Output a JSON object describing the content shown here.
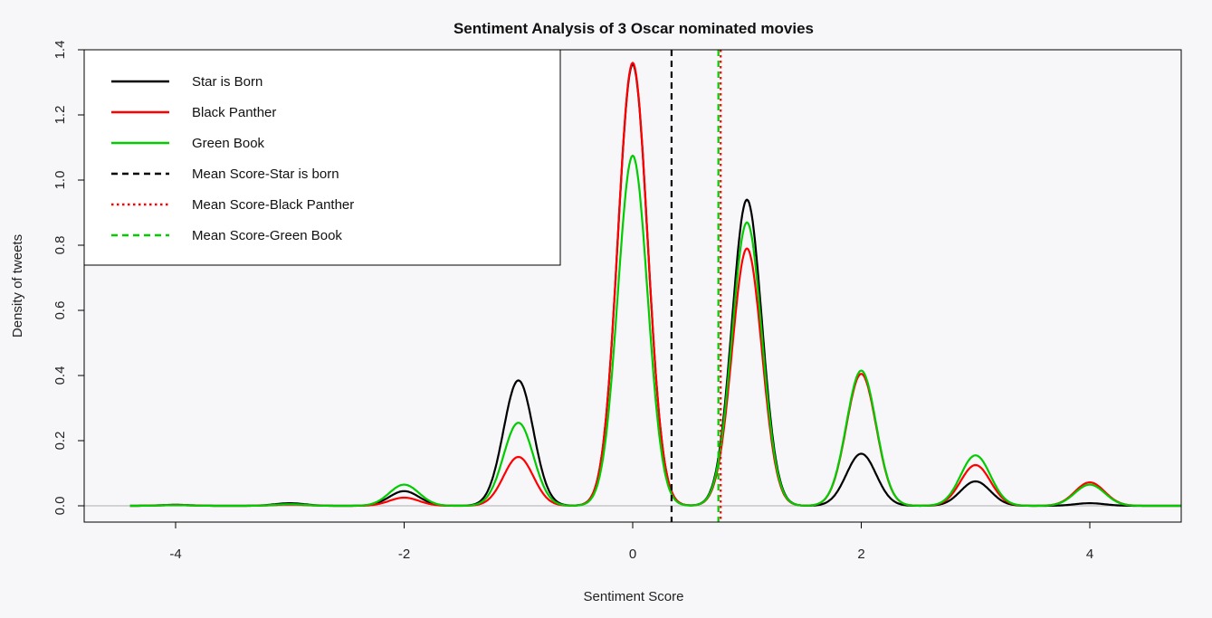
{
  "chart_data": {
    "type": "line",
    "title": "Sentiment Analysis of 3 Oscar nominated movies",
    "xlabel": "Sentiment Score",
    "ylabel": "Density of tweets",
    "xlim": [
      -4.8,
      4.8
    ],
    "ylim": [
      -0.05,
      1.4
    ],
    "x_ticks": [
      "-4",
      "-2",
      "0",
      "2",
      "4"
    ],
    "y_ticks": [
      "0.0",
      "0.2",
      "0.4",
      "0.6",
      "0.8",
      "1.0",
      "1.2",
      "1.4"
    ],
    "series": [
      {
        "name": "Star is Born",
        "color": "#000000",
        "x": [
          -4.4,
          -4,
          -3,
          -2,
          -1,
          0,
          1,
          2,
          3,
          4,
          4.8
        ],
        "values": [
          0.0,
          0.003,
          0.008,
          0.045,
          0.385,
          1.355,
          0.94,
          0.16,
          0.075,
          0.008,
          0.0
        ]
      },
      {
        "name": "Black Panther",
        "color": "#ff0000",
        "x": [
          -4.4,
          -4,
          -3,
          -2,
          -1,
          0,
          1,
          2,
          3,
          4,
          4.8
        ],
        "values": [
          0.0,
          0.002,
          0.004,
          0.025,
          0.15,
          1.36,
          0.79,
          0.405,
          0.125,
          0.072,
          0.0
        ]
      },
      {
        "name": "Green Book",
        "color": "#00cc00",
        "x": [
          -4.4,
          -4,
          -3,
          -2,
          -1,
          0,
          1,
          2,
          3,
          4,
          4.8
        ],
        "values": [
          0.0,
          0.002,
          0.005,
          0.065,
          0.255,
          1.075,
          0.87,
          0.415,
          0.155,
          0.065,
          0.003
        ]
      }
    ],
    "mean_lines": [
      {
        "name": "Mean Score-Star is born",
        "x": 0.34,
        "color": "#000000",
        "style": "dashed"
      },
      {
        "name": "Mean Score-Black Panther",
        "x": 0.77,
        "color": "#ff0000",
        "style": "dotted"
      },
      {
        "name": "Mean Score-Green Book",
        "x": 0.75,
        "color": "#00cc00",
        "style": "dashed"
      }
    ],
    "legend": [
      {
        "label": "Star is Born",
        "color": "#000000",
        "style": "solid"
      },
      {
        "label": "Black Panther",
        "color": "#ff0000",
        "style": "solid"
      },
      {
        "label": "Green Book",
        "color": "#00cc00",
        "style": "solid"
      },
      {
        "label": "Mean Score-Star is born",
        "color": "#000000",
        "style": "dashed"
      },
      {
        "label": "Mean Score-Black Panther",
        "color": "#ff0000",
        "style": "dotted"
      },
      {
        "label": "Mean Score-Green Book",
        "color": "#00cc00",
        "style": "dashed"
      }
    ],
    "legend_position": "top-left",
    "baseline": 0.0,
    "grid": false
  }
}
